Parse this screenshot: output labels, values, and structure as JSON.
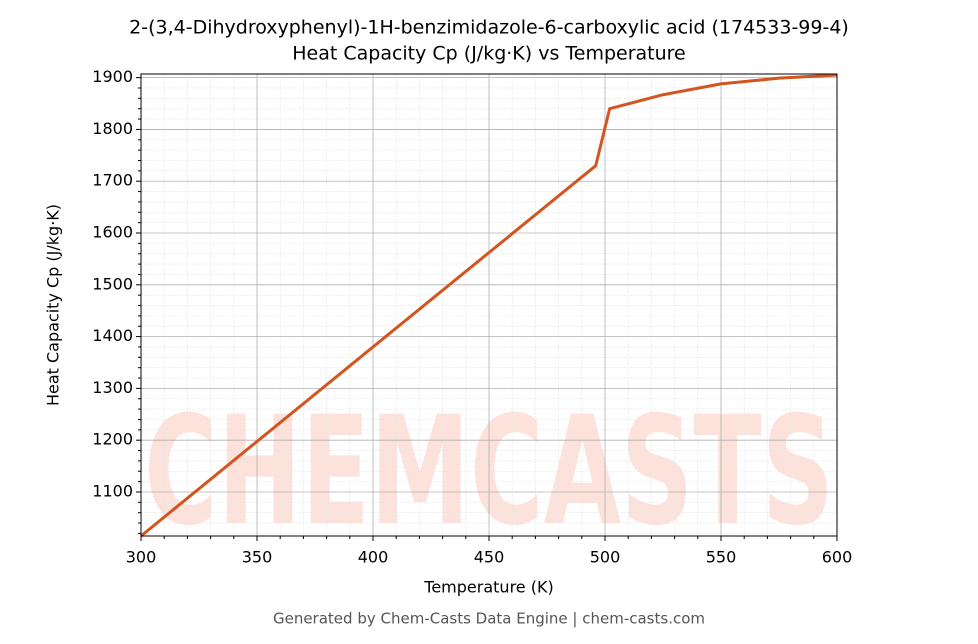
{
  "chart_data": {
    "type": "line",
    "title": [
      "2-(3,4-Dihydroxyphenyl)-1H-benzimidazole-6-carboxylic acid (174533-99-4)",
      "Heat Capacity Cp (J/kg·K) vs Temperature"
    ],
    "x_label": "Temperature (K)",
    "y_label": "Heat Capacity Cp (J/kg·K)",
    "footer": "Generated by Chem-Casts Data Engine | chem-casts.com",
    "watermark": "CHEMCASTS",
    "x": [
      300,
      400,
      496,
      502,
      525,
      550,
      575,
      600
    ],
    "series": [
      {
        "name": "Heat Capacity Cp",
        "color": "#d4541f",
        "values": [
          1015,
          1380,
          1730,
          1840,
          1867,
          1888,
          1899,
          1905
        ]
      }
    ],
    "xlim": [
      300,
      600
    ],
    "xticks": [
      300,
      350,
      400,
      450,
      500,
      550,
      600
    ],
    "ylim": [
      1015,
      1907
    ],
    "yticks": [
      1100,
      1200,
      1300,
      1400,
      1500,
      1600,
      1700,
      1800,
      1900
    ],
    "grid": true,
    "minor_grid": true
  }
}
